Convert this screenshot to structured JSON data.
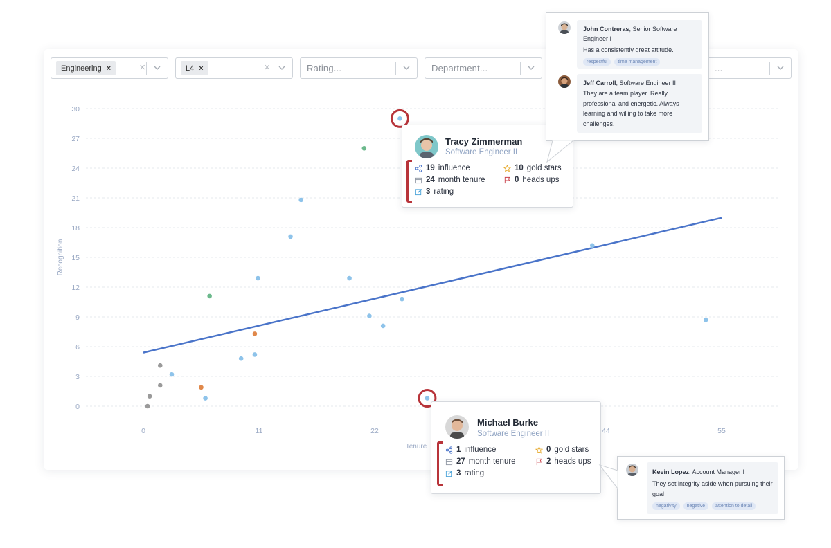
{
  "filters": [
    {
      "chip": "Engineering",
      "chip_x": "×",
      "clear": "×"
    },
    {
      "chip": "L4",
      "chip_x": "×",
      "clear": "×"
    },
    {
      "placeholder": "Rating..."
    },
    {
      "placeholder": "Department..."
    },
    {
      "placeholder": "..."
    }
  ],
  "chart_data": {
    "type": "scatter",
    "xlabel": "Tenure",
    "ylabel": "Recognition",
    "xlim": [
      0,
      55
    ],
    "ylim": [
      0,
      30
    ],
    "xticks": [
      0,
      11,
      22,
      44,
      55
    ],
    "yticks": [
      0,
      3,
      6,
      9,
      12,
      15,
      18,
      21,
      24,
      27,
      30
    ],
    "grid": true,
    "trendline": {
      "x": [
        0,
        55
      ],
      "y": [
        5.4,
        19.0
      ],
      "color": "#4a74c9"
    },
    "colors": {
      "blue": "#8ec3ea",
      "green": "#6cb98c",
      "orange": "#e0884a",
      "gray": "#9a9a9a"
    },
    "points": [
      {
        "x": 0.4,
        "y": 0,
        "color": "gray"
      },
      {
        "x": 0.6,
        "y": 1.0,
        "color": "gray"
      },
      {
        "x": 1.6,
        "y": 2.1,
        "color": "gray"
      },
      {
        "x": 1.6,
        "y": 4.1,
        "color": "gray"
      },
      {
        "x": 2.7,
        "y": 3.2,
        "color": "blue"
      },
      {
        "x": 5.5,
        "y": 1.9,
        "color": "orange"
      },
      {
        "x": 5.9,
        "y": 0.8,
        "color": "blue"
      },
      {
        "x": 6.3,
        "y": 11.1,
        "color": "green"
      },
      {
        "x": 9.3,
        "y": 4.8,
        "color": "blue"
      },
      {
        "x": 10.6,
        "y": 5.2,
        "color": "blue"
      },
      {
        "x": 10.6,
        "y": 7.3,
        "color": "orange"
      },
      {
        "x": 10.9,
        "y": 12.9,
        "color": "blue"
      },
      {
        "x": 14.0,
        "y": 17.1,
        "color": "blue"
      },
      {
        "x": 15.0,
        "y": 20.8,
        "color": "blue"
      },
      {
        "x": 19.6,
        "y": 12.9,
        "color": "blue"
      },
      {
        "x": 21.0,
        "y": 26.0,
        "color": "green"
      },
      {
        "x": 21.5,
        "y": 9.1,
        "color": "blue"
      },
      {
        "x": 22.8,
        "y": 8.1,
        "color": "blue"
      },
      {
        "x": 24.4,
        "y": 29.0,
        "color": "blue",
        "highlight": true
      },
      {
        "x": 24.6,
        "y": 10.8,
        "color": "blue"
      },
      {
        "x": 27.0,
        "y": 0.8,
        "color": "blue",
        "highlight": true
      },
      {
        "x": 42.7,
        "y": 16.2,
        "color": "blue"
      },
      {
        "x": 53.5,
        "y": 8.7,
        "color": "blue"
      }
    ]
  },
  "employees": {
    "tracy": {
      "name": "Tracy Zimmerman",
      "title": "Software Engineer II",
      "influence_value": "19",
      "influence_label": "influence",
      "tenure_value": "24",
      "tenure_label": "month tenure",
      "rating_value": "3",
      "rating_label": "rating",
      "stars_value": "10",
      "stars_label": "gold stars",
      "headsups_value": "0",
      "headsups_label": "heads ups"
    },
    "michael": {
      "name": "Michael Burke",
      "title": "Software Engineer II",
      "influence_value": "1",
      "influence_label": "influence",
      "tenure_value": "27",
      "tenure_label": "month tenure",
      "rating_value": "3",
      "rating_label": "rating",
      "stars_value": "0",
      "stars_label": "gold stars",
      "headsups_value": "2",
      "headsups_label": "heads ups"
    }
  },
  "comments_top": [
    {
      "author": "John Contreras",
      "role": ", Senior Software Engineer I",
      "text": "Has a consistently great attitude.",
      "tags": [
        "respectful",
        "time management"
      ]
    },
    {
      "author": "Jeff Carroll",
      "role": ", Software Engineer II",
      "text": "They are a team player. Really professional and energetic. Always learning and willing to take more challenges.",
      "tags": []
    }
  ],
  "comments_bottom": [
    {
      "author": "Kevin Lopez",
      "role": ", Account Manager I",
      "text": "They set integrity aside when pursuing their goal",
      "tags": [
        "negativity",
        "negative",
        "attention to detail"
      ]
    }
  ]
}
